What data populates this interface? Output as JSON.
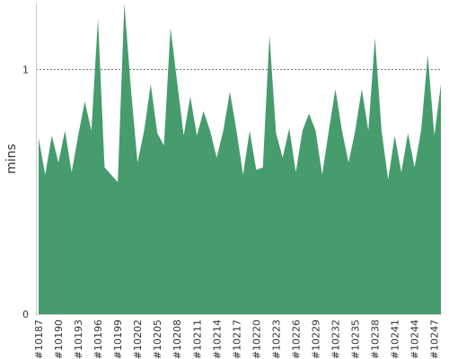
{
  "chart_data": {
    "type": "area",
    "ylabel": "mins",
    "xlabel": "",
    "title": "",
    "ylim": [
      0,
      1.27
    ],
    "y_ticks": [
      {
        "value": 0,
        "label": "0"
      },
      {
        "value": 1,
        "label": "1"
      }
    ],
    "reference_line": {
      "value": 1,
      "style": "dotted"
    },
    "grid": false,
    "legend": "none",
    "colors": {
      "fill": "#469c6d",
      "axis": "#cccccc",
      "reference": "#777777"
    },
    "x_tick_labels": [
      "#10187",
      "#10190",
      "#10193",
      "#10196",
      "#10199",
      "#10202",
      "#10205",
      "#10208",
      "#10211",
      "#10214",
      "#10217",
      "#10220",
      "#10223",
      "#10226",
      "#10229",
      "#10232",
      "#10235",
      "#10238",
      "#10241",
      "#10244",
      "#10247"
    ],
    "x": [
      10187,
      10188,
      10189,
      10190,
      10191,
      10192,
      10193,
      10194,
      10195,
      10196,
      10197,
      10198,
      10199,
      10200,
      10201,
      10202,
      10203,
      10204,
      10205,
      10206,
      10207,
      10208,
      10209,
      10210,
      10211,
      10212,
      10213,
      10214,
      10215,
      10216,
      10217,
      10218,
      10219,
      10220,
      10221,
      10222,
      10223,
      10224,
      10225,
      10226,
      10227,
      10228,
      10229,
      10230,
      10231,
      10232,
      10233,
      10234,
      10235,
      10236,
      10237,
      10238,
      10239,
      10240,
      10241,
      10242,
      10243,
      10244,
      10245,
      10246,
      10247,
      10248
    ],
    "values": [
      0.72,
      0.57,
      0.73,
      0.62,
      0.75,
      0.58,
      0.73,
      0.87,
      0.75,
      1.21,
      0.6,
      0.57,
      0.54,
      1.27,
      0.92,
      0.62,
      0.75,
      0.94,
      0.74,
      0.69,
      1.17,
      0.95,
      0.73,
      0.89,
      0.73,
      0.83,
      0.75,
      0.64,
      0.75,
      0.91,
      0.75,
      0.57,
      0.75,
      0.59,
      0.6,
      1.14,
      0.74,
      0.64,
      0.76,
      0.58,
      0.75,
      0.82,
      0.75,
      0.57,
      0.75,
      0.92,
      0.75,
      0.62,
      0.75,
      0.92,
      0.75,
      1.13,
      0.75,
      0.55,
      0.73,
      0.58,
      0.74,
      0.6,
      0.75,
      1.06,
      0.73,
      0.94
    ]
  }
}
